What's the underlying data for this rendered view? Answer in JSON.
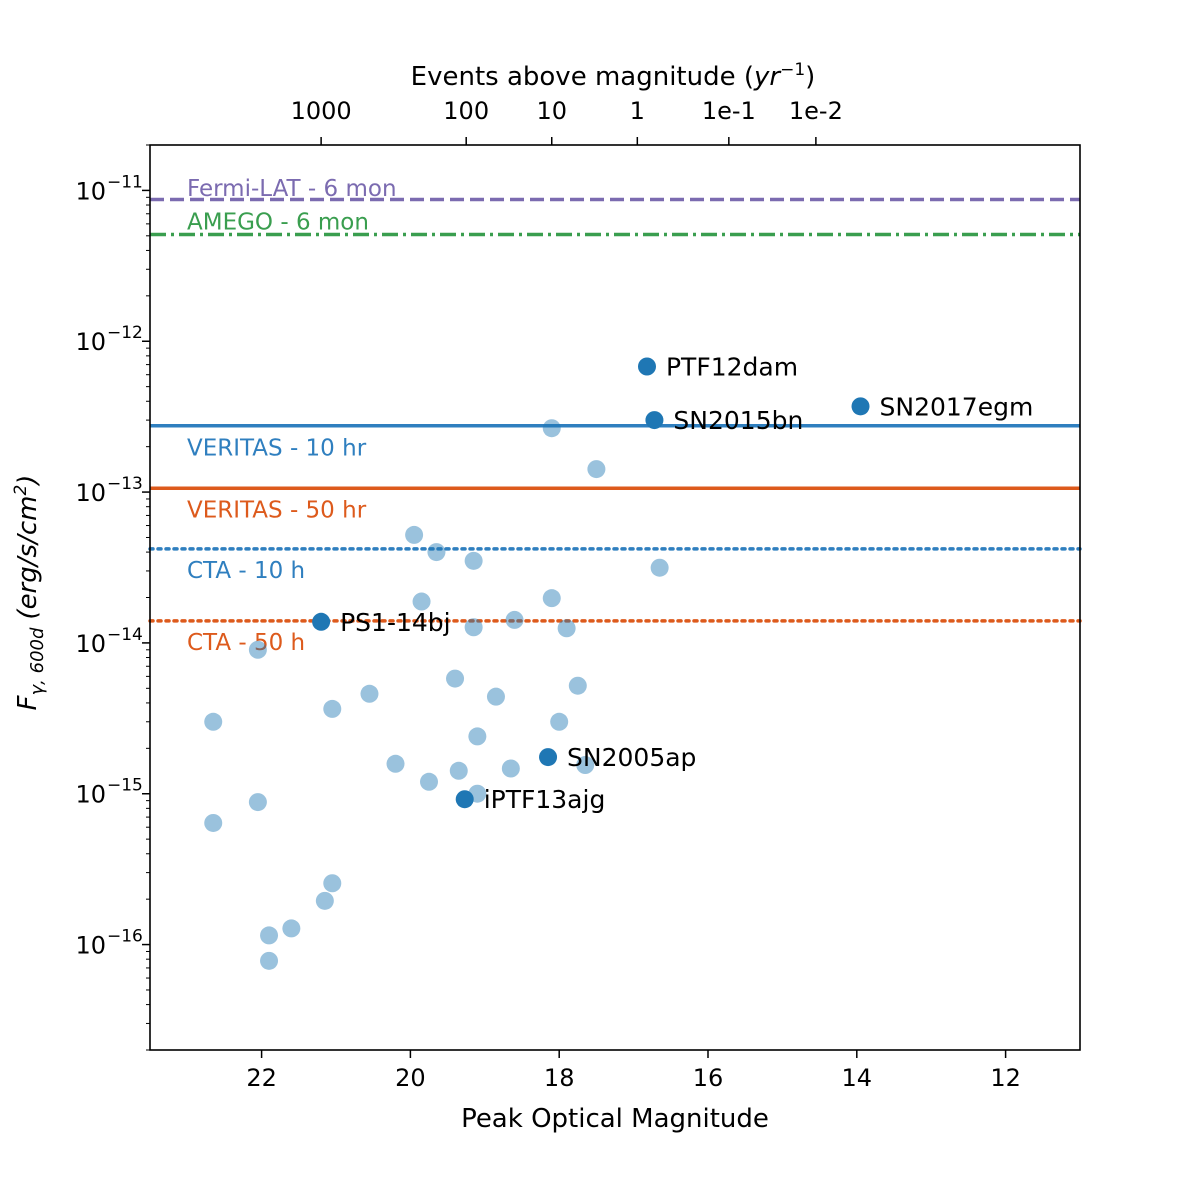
{
  "chart_data": {
    "type": "scatter",
    "title": "",
    "xlabel": "Peak Optical Magnitude",
    "ylabel_main": "F",
    "ylabel_sub": "γ, 600d",
    "ylabel_units": "(erg/s/cm",
    "ylabel_units_sup": "2",
    "ylabel_units_close": ")",
    "x_inverted": true,
    "xlim": [
      23.5,
      11.0
    ],
    "ylim": [
      2e-17,
      2e-11
    ],
    "y_scale": "log",
    "x_ticks": [
      {
        "value": 22,
        "label": "22"
      },
      {
        "value": 20,
        "label": "20"
      },
      {
        "value": 18,
        "label": "18"
      },
      {
        "value": 16,
        "label": "16"
      },
      {
        "value": 14,
        "label": "14"
      },
      {
        "value": 12,
        "label": "12"
      }
    ],
    "y_ticks": [
      {
        "value": 1e-11,
        "base": "10",
        "exp": "−11"
      },
      {
        "value": 1e-12,
        "base": "10",
        "exp": "−12"
      },
      {
        "value": 1e-13,
        "base": "10",
        "exp": "−13"
      },
      {
        "value": 1e-14,
        "base": "10",
        "exp": "−14"
      },
      {
        "value": 1e-15,
        "base": "10",
        "exp": "−15"
      },
      {
        "value": 1e-16,
        "base": "10",
        "exp": "−16"
      }
    ],
    "top_axis": {
      "label_prefix": "Events above magnitude (",
      "label_var": "yr",
      "label_sup": "−1",
      "label_suffix": ")",
      "ticks": [
        {
          "value": 21.2,
          "label": "1000"
        },
        {
          "value": 19.25,
          "label": "100"
        },
        {
          "value": 18.1,
          "label": "10"
        },
        {
          "value": 16.95,
          "label": "1"
        },
        {
          "value": 15.72,
          "label": "1e-1"
        },
        {
          "value": 14.55,
          "label": "1e-2"
        }
      ]
    },
    "lines": [
      {
        "name": "Fermi-LAT - 6 mon",
        "y": 8.7e-12,
        "color": "#7b6bb0",
        "style": "dashed",
        "label_y": 1.05e-11
      },
      {
        "name": "AMEGO - 6 mon",
        "y": 5.1e-12,
        "color": "#3a9e4f",
        "style": "dashdot",
        "label_y": 6.3e-12
      },
      {
        "name": "VERITAS - 10 hr",
        "y": 2.75e-13,
        "color": "#2f7fbf",
        "style": "solid",
        "label_y": 2e-13
      },
      {
        "name": "VERITAS - 50 hr",
        "y": 1.06e-13,
        "color": "#dd5a1c",
        "style": "solid",
        "label_y": 7.8e-14
      },
      {
        "name": "CTA - 10 h",
        "y": 4.2e-14,
        "color": "#2f7fbf",
        "style": "dotted",
        "label_y": 3.1e-14
      },
      {
        "name": "CTA - 50 h",
        "y": 1.4e-14,
        "color": "#dd5a1c",
        "style": "dotted",
        "label_y": 1.03e-14
      }
    ],
    "point_color": "#1f77b4",
    "labeled_points": [
      {
        "name": "PTF12dam",
        "x": 16.82,
        "y": 6.8e-13
      },
      {
        "name": "SN2015bn",
        "x": 16.72,
        "y": 3e-13
      },
      {
        "name": "SN2017egm",
        "x": 13.95,
        "y": 3.7e-13
      },
      {
        "name": "PS1-14bj",
        "x": 21.2,
        "y": 1.38e-14
      },
      {
        "name": "SN2005ap",
        "x": 18.15,
        "y": 1.75e-15
      },
      {
        "name": "iPTF13ajg",
        "x": 19.27,
        "y": 9.2e-16
      }
    ],
    "background_points": [
      {
        "x": 18.1,
        "y": 2.65e-13
      },
      {
        "x": 17.5,
        "y": 1.42e-13
      },
      {
        "x": 19.95,
        "y": 5.2e-14
      },
      {
        "x": 19.65,
        "y": 4e-14
      },
      {
        "x": 19.15,
        "y": 3.5e-14
      },
      {
        "x": 16.65,
        "y": 3.15e-14
      },
      {
        "x": 19.85,
        "y": 1.88e-14
      },
      {
        "x": 18.1,
        "y": 1.98e-14
      },
      {
        "x": 18.6,
        "y": 1.42e-14
      },
      {
        "x": 17.9,
        "y": 1.25e-14
      },
      {
        "x": 19.15,
        "y": 1.27e-14
      },
      {
        "x": 22.05,
        "y": 9e-15
      },
      {
        "x": 19.4,
        "y": 5.8e-15
      },
      {
        "x": 17.75,
        "y": 5.2e-15
      },
      {
        "x": 20.55,
        "y": 4.6e-15
      },
      {
        "x": 18.85,
        "y": 4.4e-15
      },
      {
        "x": 21.05,
        "y": 3.65e-15
      },
      {
        "x": 22.65,
        "y": 3e-15
      },
      {
        "x": 18.0,
        "y": 3e-15
      },
      {
        "x": 19.1,
        "y": 2.4e-15
      },
      {
        "x": 20.2,
        "y": 1.58e-15
      },
      {
        "x": 19.35,
        "y": 1.42e-15
      },
      {
        "x": 18.65,
        "y": 1.47e-15
      },
      {
        "x": 17.65,
        "y": 1.55e-15
      },
      {
        "x": 19.75,
        "y": 1.2e-15
      },
      {
        "x": 19.1,
        "y": 1e-15
      },
      {
        "x": 22.05,
        "y": 8.8e-16
      },
      {
        "x": 22.65,
        "y": 6.4e-16
      },
      {
        "x": 21.05,
        "y": 2.55e-16
      },
      {
        "x": 21.15,
        "y": 1.95e-16
      },
      {
        "x": 21.6,
        "y": 1.28e-16
      },
      {
        "x": 21.9,
        "y": 1.15e-16
      },
      {
        "x": 21.9,
        "y": 7.8e-17
      }
    ]
  }
}
